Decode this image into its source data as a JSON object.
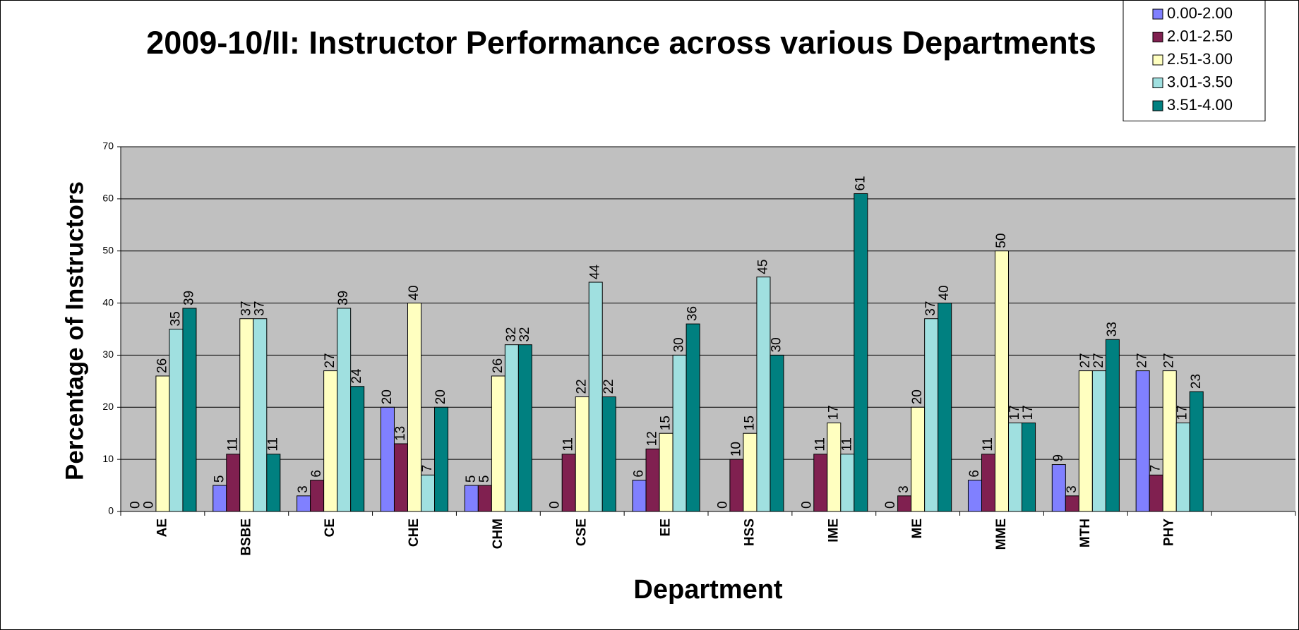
{
  "chart_data": {
    "type": "bar",
    "title": "2009-10/II: Instructor Performance across various Departments",
    "x_label": "Department",
    "y_label": "Percentage of Instructors",
    "categories": [
      "AE",
      "BSBE",
      "CE",
      "CHE",
      "CHM",
      "CSE",
      "EE",
      "HSS",
      "IME",
      "ME",
      "MME",
      "MTH",
      "PHY",
      null
    ],
    "series": [
      {
        "name": "0.00-2.00",
        "color": "#8080ff",
        "values": [
          0,
          5,
          3,
          20,
          5,
          0,
          6,
          0,
          0,
          0,
          6,
          9,
          27,
          null
        ]
      },
      {
        "name": "2.01-2.50",
        "color": "#802050",
        "values": [
          0,
          11,
          6,
          13,
          5,
          11,
          12,
          10,
          11,
          3,
          11,
          3,
          7,
          null
        ]
      },
      {
        "name": "2.51-3.00",
        "color": "#ffffc0",
        "values": [
          26,
          37,
          27,
          40,
          26,
          22,
          15,
          15,
          17,
          20,
          50,
          27,
          27,
          null
        ]
      },
      {
        "name": "3.01-3.50",
        "color": "#a0e0e0",
        "values": [
          35,
          37,
          39,
          7,
          32,
          44,
          30,
          45,
          11,
          37,
          17,
          27,
          17,
          null
        ]
      },
      {
        "name": "3.51-4.00",
        "color": "#008080",
        "values": [
          39,
          11,
          24,
          20,
          32,
          22,
          36,
          30,
          61,
          40,
          17,
          33,
          23,
          null
        ]
      }
    ],
    "ylim": [
      0,
      70
    ],
    "yticks": [
      0,
      10,
      20,
      30,
      40,
      50,
      60,
      70
    ],
    "grid": true,
    "legend": "top-right"
  }
}
